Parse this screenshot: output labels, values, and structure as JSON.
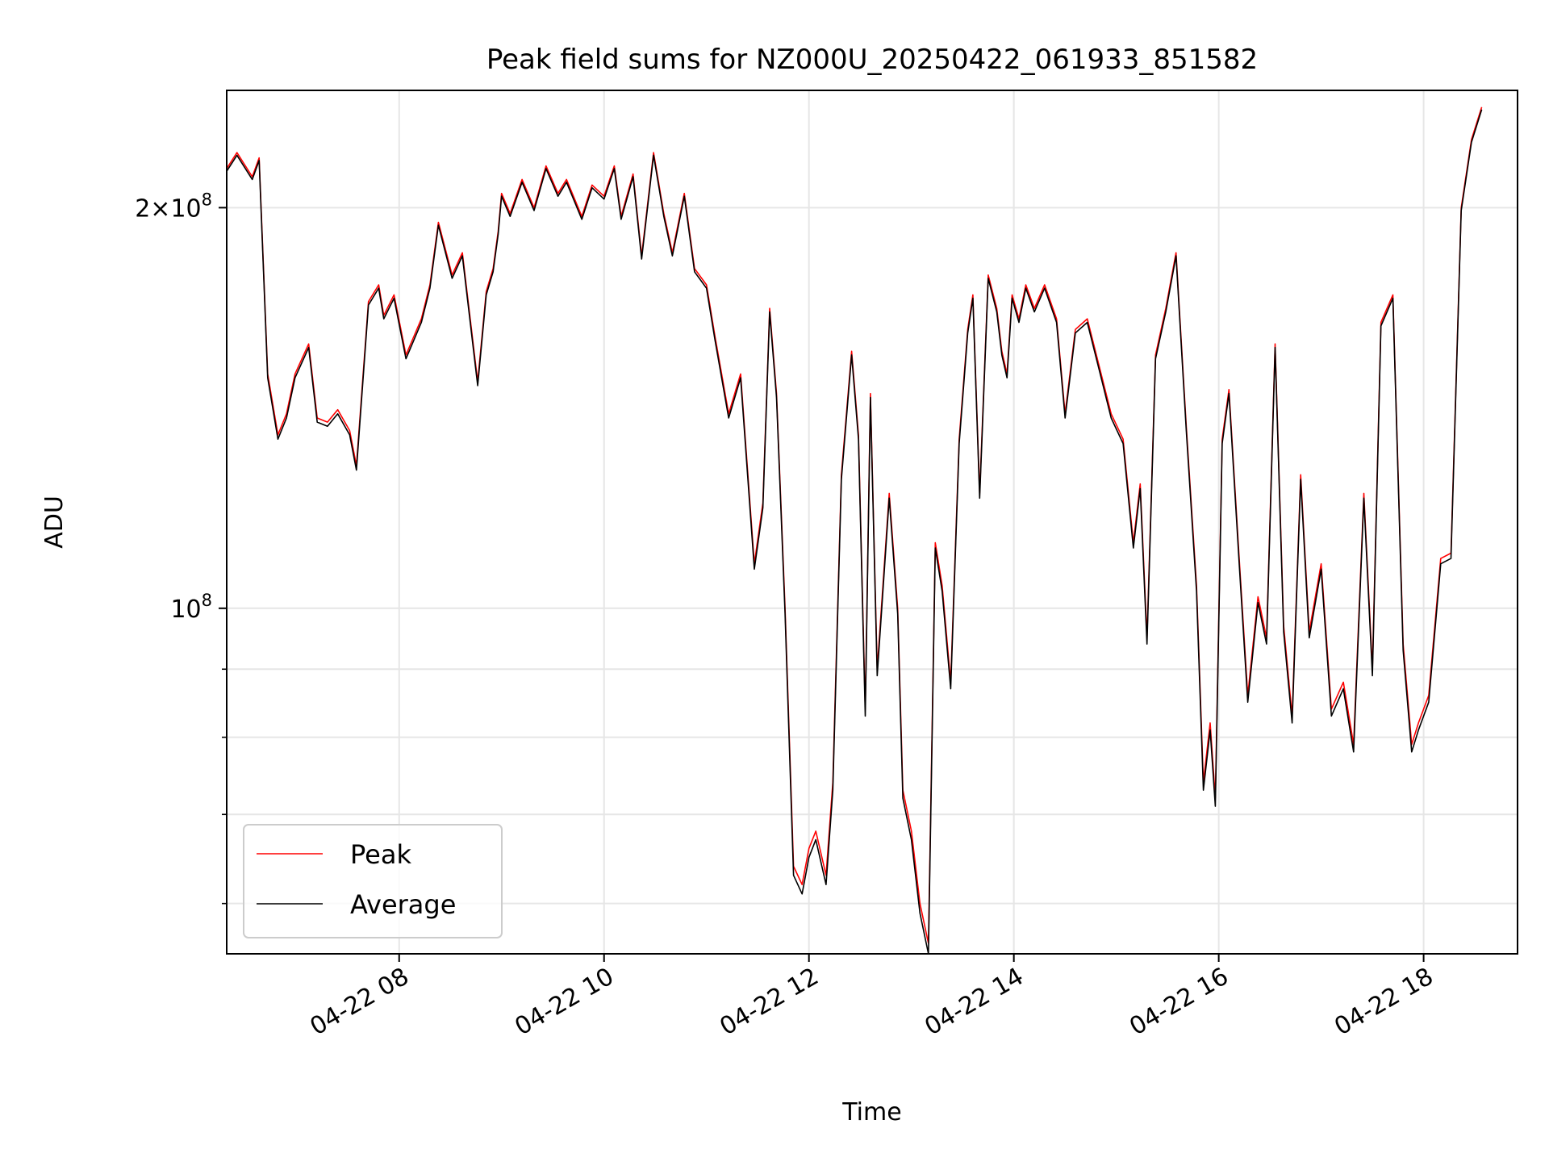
{
  "chart_data": {
    "type": "line",
    "title": "Peak field sums for NZ000U_20250422_061933_851582",
    "xlabel": "Time",
    "ylabel": "ADU",
    "y_scale": "log",
    "ylim": [
      55000000,
      245000000
    ],
    "xlim": [
      "2025-04-22 06:19",
      "2025-04-22 18:55"
    ],
    "grid": true,
    "legend_position": "lower-left",
    "x_ticks": [
      {
        "t": "2025-04-22 08:00",
        "label": "04-22 08"
      },
      {
        "t": "2025-04-22 10:00",
        "label": "04-22 10"
      },
      {
        "t": "2025-04-22 12:00",
        "label": "04-22 12"
      },
      {
        "t": "2025-04-22 14:00",
        "label": "04-22 14"
      },
      {
        "t": "2025-04-22 16:00",
        "label": "04-22 16"
      },
      {
        "t": "2025-04-22 18:00",
        "label": "04-22 18"
      }
    ],
    "y_major_ticks": [
      {
        "value": 100000000,
        "base": "10",
        "exp": "8"
      },
      {
        "value": 200000000,
        "mant": "2",
        "base": "10",
        "exp": "8"
      }
    ],
    "y_minor_ticks": [
      60000000,
      70000000,
      80000000,
      90000000
    ],
    "series": [
      {
        "name": "Peak",
        "color": "#ff0000"
      },
      {
        "name": "Average",
        "color": "#000000"
      }
    ],
    "x": [
      "2025-04-22 06:19",
      "2025-04-22 06:25",
      "2025-04-22 06:34",
      "2025-04-22 06:38",
      "2025-04-22 06:43",
      "2025-04-22 06:49",
      "2025-04-22 06:54",
      "2025-04-22 06:59",
      "2025-04-22 07:07",
      "2025-04-22 07:12",
      "2025-04-22 07:18",
      "2025-04-22 07:24",
      "2025-04-22 07:31",
      "2025-04-22 07:35",
      "2025-04-22 07:42",
      "2025-04-22 07:48",
      "2025-04-22 07:51",
      "2025-04-22 07:57",
      "2025-04-22 08:04",
      "2025-04-22 08:13",
      "2025-04-22 08:18",
      "2025-04-22 08:23",
      "2025-04-22 08:31",
      "2025-04-22 08:37",
      "2025-04-22 08:46",
      "2025-04-22 08:51",
      "2025-04-22 08:55",
      "2025-04-22 08:58",
      "2025-04-22 09:00",
      "2025-04-22 09:05",
      "2025-04-22 09:12",
      "2025-04-22 09:19",
      "2025-04-22 09:26",
      "2025-04-22 09:33",
      "2025-04-22 09:38",
      "2025-04-22 09:47",
      "2025-04-22 09:53",
      "2025-04-22 10:00",
      "2025-04-22 10:06",
      "2025-04-22 10:10",
      "2025-04-22 10:17",
      "2025-04-22 10:22",
      "2025-04-22 10:29",
      "2025-04-22 10:35",
      "2025-04-22 10:40",
      "2025-04-22 10:47",
      "2025-04-22 10:53",
      "2025-04-22 11:00",
      "2025-04-22 11:05",
      "2025-04-22 11:13",
      "2025-04-22 11:20",
      "2025-04-22 11:28",
      "2025-04-22 11:33",
      "2025-04-22 11:37",
      "2025-04-22 11:41",
      "2025-04-22 11:46",
      "2025-04-22 11:51",
      "2025-04-22 11:56",
      "2025-04-22 12:00",
      "2025-04-22 12:04",
      "2025-04-22 12:10",
      "2025-04-22 12:14",
      "2025-04-22 12:19",
      "2025-04-22 12:25",
      "2025-04-22 12:29",
      "2025-04-22 12:33",
      "2025-04-22 12:36",
      "2025-04-22 12:40",
      "2025-04-22 12:47",
      "2025-04-22 12:52",
      "2025-04-22 12:55",
      "2025-04-22 13:00",
      "2025-04-22 13:05",
      "2025-04-22 13:10",
      "2025-04-22 13:14",
      "2025-04-22 13:18",
      "2025-04-22 13:23",
      "2025-04-22 13:28",
      "2025-04-22 13:33",
      "2025-04-22 13:36",
      "2025-04-22 13:40",
      "2025-04-22 13:45",
      "2025-04-22 13:50",
      "2025-04-22 13:53",
      "2025-04-22 13:56",
      "2025-04-22 13:59",
      "2025-04-22 14:03",
      "2025-04-22 14:07",
      "2025-04-22 14:12",
      "2025-04-22 14:18",
      "2025-04-22 14:25",
      "2025-04-22 14:30",
      "2025-04-22 14:36",
      "2025-04-22 14:43",
      "2025-04-22 14:50",
      "2025-04-22 14:57",
      "2025-04-22 15:04",
      "2025-04-22 15:10",
      "2025-04-22 15:14",
      "2025-04-22 15:18",
      "2025-04-22 15:23",
      "2025-04-22 15:29",
      "2025-04-22 15:35",
      "2025-04-22 15:41",
      "2025-04-22 15:47",
      "2025-04-22 15:51",
      "2025-04-22 15:55",
      "2025-04-22 15:58",
      "2025-04-22 16:02",
      "2025-04-22 16:06",
      "2025-04-22 16:12",
      "2025-04-22 16:17",
      "2025-04-22 16:23",
      "2025-04-22 16:28",
      "2025-04-22 16:33",
      "2025-04-22 16:38",
      "2025-04-22 16:43",
      "2025-04-22 16:48",
      "2025-04-22 16:53",
      "2025-04-22 17:00",
      "2025-04-22 17:06",
      "2025-04-22 17:13",
      "2025-04-22 17:19",
      "2025-04-22 17:25",
      "2025-04-22 17:30",
      "2025-04-22 17:35",
      "2025-04-22 17:42",
      "2025-04-22 17:48",
      "2025-04-22 17:53",
      "2025-04-22 17:57",
      "2025-04-22 18:03",
      "2025-04-22 18:10",
      "2025-04-22 18:16",
      "2025-04-22 18:22",
      "2025-04-22 18:28",
      "2025-04-22 18:34",
      "2025-04-22 18:41",
      "2025-04-22 18:47",
      "2025-04-22 18:55"
    ],
    "peak": [
      214,
      220,
      211,
      218,
      150,
      135,
      140,
      150,
      158,
      139,
      138,
      141,
      136,
      128,
      170,
      175,
      166,
      172,
      155,
      165,
      175,
      195,
      178,
      185,
      148,
      173,
      180,
      192,
      205,
      198,
      210,
      200,
      215,
      205,
      210,
      197,
      208,
      204,
      215,
      197,
      212,
      184,
      220,
      198,
      185,
      205,
      180,
      175,
      160,
      140,
      150,
      108,
      120,
      168,
      145,
      100,
      64,
      62,
      66,
      68,
      63,
      74,
      126,
      156,
      135,
      84,
      145,
      90,
      122,
      100,
      73,
      68,
      60,
      56,
      112,
      104,
      88,
      134,
      162,
      172,
      122,
      178,
      168,
      156,
      150,
      172,
      165,
      175,
      168,
      175,
      165,
      140,
      162,
      165,
      152,
      140,
      134,
      112,
      124,
      95,
      155,
      168,
      185,
      137,
      104,
      74,
      82,
      72,
      134,
      146,
      109,
      86,
      102,
      95,
      158,
      97,
      83,
      126,
      96,
      108,
      84,
      88,
      79,
      122,
      90,
      164,
      172,
      94,
      79,
      82,
      86,
      109,
      110,
      200,
      225,
      238
    ],
    "average": [
      213,
      219,
      210,
      217,
      149,
      134,
      139,
      149,
      157,
      138,
      137,
      140,
      135,
      127,
      169,
      174,
      165,
      171,
      154,
      164,
      174,
      194,
      177,
      184,
      147,
      172,
      179,
      191,
      204,
      197,
      209,
      199,
      214,
      204,
      209,
      196,
      207,
      203,
      214,
      196,
      211,
      183,
      219,
      197,
      184,
      204,
      179,
      174,
      159,
      139,
      149,
      107,
      119,
      167,
      144,
      99,
      63,
      61,
      65,
      67,
      62,
      73,
      125,
      155,
      134,
      83,
      144,
      89,
      121,
      99,
      72,
      67,
      59,
      55,
      111,
      103,
      87,
      133,
      161,
      171,
      121,
      177,
      167,
      155,
      149,
      171,
      164,
      174,
      167,
      174,
      164,
      139,
      161,
      164,
      151,
      139,
      133,
      111,
      123,
      94,
      154,
      167,
      184,
      136,
      103,
      73,
      81,
      71,
      133,
      145,
      108,
      85,
      101,
      94,
      157,
      96,
      82,
      125,
      95,
      107,
      83,
      87,
      78,
      121,
      89,
      163,
      171,
      93,
      78,
      81,
      85,
      108,
      109,
      199,
      224,
      237
    ],
    "value_unit_multiplier": 1000000
  }
}
